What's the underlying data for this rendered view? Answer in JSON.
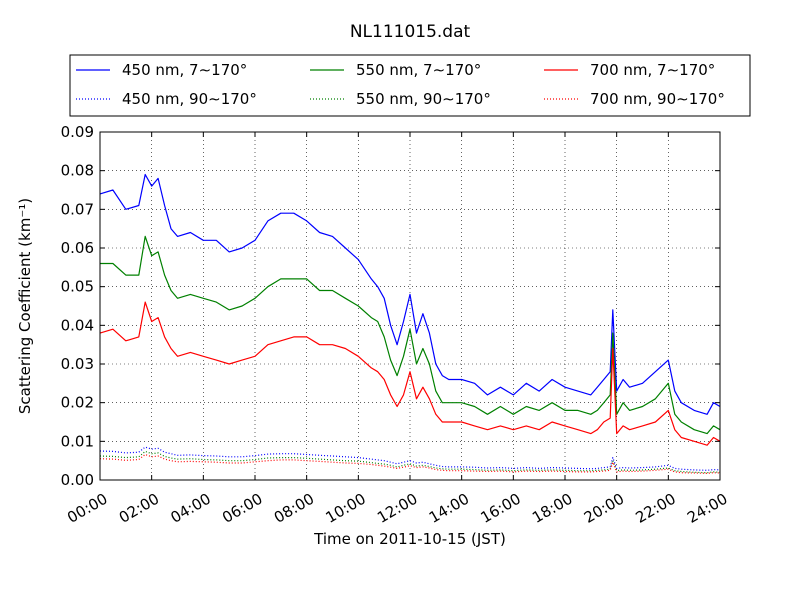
{
  "chart_data": {
    "type": "line",
    "title": "NL111015.dat",
    "xlabel": "Time on 2011-10-15 (JST)",
    "ylabel": "Scattering Coefficient (km⁻¹)",
    "x_unit": "hour",
    "xlim": [
      0,
      24
    ],
    "ylim": [
      0,
      0.09
    ],
    "xticks": [
      0,
      2,
      4,
      6,
      8,
      10,
      12,
      14,
      16,
      18,
      20,
      22,
      24
    ],
    "xtick_labels": [
      "00:00",
      "02:00",
      "04:00",
      "06:00",
      "08:00",
      "10:00",
      "12:00",
      "14:00",
      "16:00",
      "18:00",
      "20:00",
      "22:00",
      "24:00"
    ],
    "yticks": [
      0,
      0.01,
      0.02,
      0.03,
      0.04,
      0.05,
      0.06,
      0.07,
      0.08,
      0.09
    ],
    "ytick_labels": [
      "0.00",
      "0.01",
      "0.02",
      "0.03",
      "0.04",
      "0.05",
      "0.06",
      "0.07",
      "0.08",
      "0.09"
    ],
    "grid": true,
    "legend_position": "top",
    "x": [
      0,
      0.5,
      1,
      1.5,
      1.75,
      2,
      2.25,
      2.5,
      2.75,
      3,
      3.5,
      4,
      4.5,
      5,
      5.5,
      6,
      6.5,
      7,
      7.5,
      8,
      8.5,
      9,
      9.5,
      10,
      10.5,
      10.75,
      11,
      11.25,
      11.5,
      11.75,
      12,
      12.25,
      12.5,
      12.75,
      13,
      13.25,
      13.5,
      14,
      14.5,
      15,
      15.5,
      16,
      16.5,
      17,
      17.5,
      18,
      18.5,
      19,
      19.25,
      19.5,
      19.75,
      19.85,
      20,
      20.25,
      20.5,
      21,
      21.5,
      22,
      22.25,
      22.5,
      23,
      23.5,
      23.75,
      24
    ],
    "series": [
      {
        "name": "450 nm, 7∼170°",
        "color": "#0000ff",
        "style": "solid",
        "values": [
          0.074,
          0.075,
          0.07,
          0.071,
          0.079,
          0.076,
          0.078,
          0.071,
          0.065,
          0.063,
          0.064,
          0.062,
          0.062,
          0.059,
          0.06,
          0.062,
          0.067,
          0.069,
          0.069,
          0.067,
          0.064,
          0.063,
          0.06,
          0.057,
          0.052,
          0.05,
          0.047,
          0.04,
          0.035,
          0.041,
          0.048,
          0.038,
          0.043,
          0.038,
          0.03,
          0.027,
          0.026,
          0.026,
          0.025,
          0.022,
          0.024,
          0.022,
          0.025,
          0.023,
          0.026,
          0.024,
          0.023,
          0.022,
          0.024,
          0.026,
          0.028,
          0.044,
          0.023,
          0.026,
          0.024,
          0.025,
          0.028,
          0.031,
          0.023,
          0.02,
          0.018,
          0.017,
          0.02,
          0.019
        ]
      },
      {
        "name": "550 nm, 7∼170°",
        "color": "#008000",
        "style": "solid",
        "values": [
          0.056,
          0.056,
          0.053,
          0.053,
          0.063,
          0.058,
          0.059,
          0.053,
          0.049,
          0.047,
          0.048,
          0.047,
          0.046,
          0.044,
          0.045,
          0.047,
          0.05,
          0.052,
          0.052,
          0.052,
          0.049,
          0.049,
          0.047,
          0.045,
          0.042,
          0.041,
          0.037,
          0.031,
          0.027,
          0.032,
          0.039,
          0.03,
          0.034,
          0.03,
          0.023,
          0.02,
          0.02,
          0.02,
          0.019,
          0.017,
          0.019,
          0.017,
          0.019,
          0.018,
          0.02,
          0.018,
          0.018,
          0.017,
          0.018,
          0.02,
          0.022,
          0.038,
          0.017,
          0.02,
          0.018,
          0.019,
          0.021,
          0.025,
          0.017,
          0.015,
          0.013,
          0.012,
          0.014,
          0.013
        ]
      },
      {
        "name": "700 nm, 7∼170°",
        "color": "#ff0000",
        "style": "solid",
        "values": [
          0.038,
          0.039,
          0.036,
          0.037,
          0.046,
          0.041,
          0.042,
          0.037,
          0.034,
          0.032,
          0.033,
          0.032,
          0.031,
          0.03,
          0.031,
          0.032,
          0.035,
          0.036,
          0.037,
          0.037,
          0.035,
          0.035,
          0.034,
          0.032,
          0.029,
          0.028,
          0.026,
          0.022,
          0.019,
          0.022,
          0.028,
          0.021,
          0.024,
          0.021,
          0.017,
          0.015,
          0.015,
          0.015,
          0.014,
          0.013,
          0.014,
          0.013,
          0.014,
          0.013,
          0.015,
          0.014,
          0.013,
          0.012,
          0.013,
          0.015,
          0.016,
          0.034,
          0.012,
          0.014,
          0.013,
          0.014,
          0.015,
          0.018,
          0.013,
          0.011,
          0.01,
          0.009,
          0.011,
          0.01
        ]
      },
      {
        "name": "450 nm, 90∼170°",
        "color": "#0000ff",
        "style": "dotted",
        "values": [
          0.0075,
          0.0074,
          0.007,
          0.0072,
          0.0085,
          0.008,
          0.0082,
          0.0072,
          0.0068,
          0.0064,
          0.0065,
          0.0063,
          0.0062,
          0.006,
          0.006,
          0.0063,
          0.0067,
          0.0068,
          0.0068,
          0.0066,
          0.0064,
          0.0062,
          0.006,
          0.0058,
          0.0054,
          0.0052,
          0.005,
          0.0046,
          0.0042,
          0.0046,
          0.005,
          0.0044,
          0.0046,
          0.0042,
          0.0038,
          0.0035,
          0.0034,
          0.0034,
          0.0033,
          0.0031,
          0.0032,
          0.003,
          0.0032,
          0.003,
          0.0032,
          0.0031,
          0.003,
          0.0029,
          0.003,
          0.0032,
          0.0034,
          0.0058,
          0.003,
          0.0032,
          0.0031,
          0.0032,
          0.0034,
          0.0038,
          0.003,
          0.0028,
          0.0026,
          0.0025,
          0.0027,
          0.0026
        ]
      },
      {
        "name": "550 nm, 90∼170°",
        "color": "#008000",
        "style": "dotted",
        "values": [
          0.0062,
          0.0061,
          0.0058,
          0.006,
          0.0074,
          0.0068,
          0.007,
          0.0061,
          0.0057,
          0.0054,
          0.0055,
          0.0053,
          0.0052,
          0.005,
          0.005,
          0.0053,
          0.0057,
          0.0058,
          0.0058,
          0.0056,
          0.0054,
          0.0052,
          0.005,
          0.0049,
          0.0045,
          0.0043,
          0.0041,
          0.0038,
          0.0034,
          0.0038,
          0.0042,
          0.0036,
          0.0038,
          0.0035,
          0.0031,
          0.0029,
          0.0028,
          0.0028,
          0.0027,
          0.0025,
          0.0026,
          0.0024,
          0.0026,
          0.0025,
          0.0026,
          0.0025,
          0.0024,
          0.0024,
          0.0025,
          0.0026,
          0.0028,
          0.005,
          0.0024,
          0.0026,
          0.0025,
          0.0026,
          0.0028,
          0.0031,
          0.0024,
          0.0022,
          0.002,
          0.0019,
          0.0021,
          0.002
        ]
      },
      {
        "name": "700 nm, 90∼170°",
        "color": "#ff0000",
        "style": "dotted",
        "values": [
          0.0055,
          0.0054,
          0.0051,
          0.0053,
          0.0066,
          0.006,
          0.0062,
          0.0054,
          0.005,
          0.0047,
          0.0048,
          0.0047,
          0.0046,
          0.0044,
          0.0044,
          0.0047,
          0.005,
          0.0052,
          0.0052,
          0.005,
          0.0048,
          0.0046,
          0.0044,
          0.0043,
          0.004,
          0.0038,
          0.0036,
          0.0033,
          0.003,
          0.0033,
          0.0037,
          0.0032,
          0.0034,
          0.0031,
          0.0027,
          0.0025,
          0.0024,
          0.0024,
          0.0023,
          0.0022,
          0.0023,
          0.0021,
          0.0023,
          0.0022,
          0.0023,
          0.0022,
          0.0021,
          0.0021,
          0.0022,
          0.0023,
          0.0025,
          0.0046,
          0.0021,
          0.0023,
          0.0022,
          0.0023,
          0.0025,
          0.0028,
          0.0021,
          0.0019,
          0.0018,
          0.0017,
          0.0019,
          0.0018
        ]
      }
    ]
  }
}
